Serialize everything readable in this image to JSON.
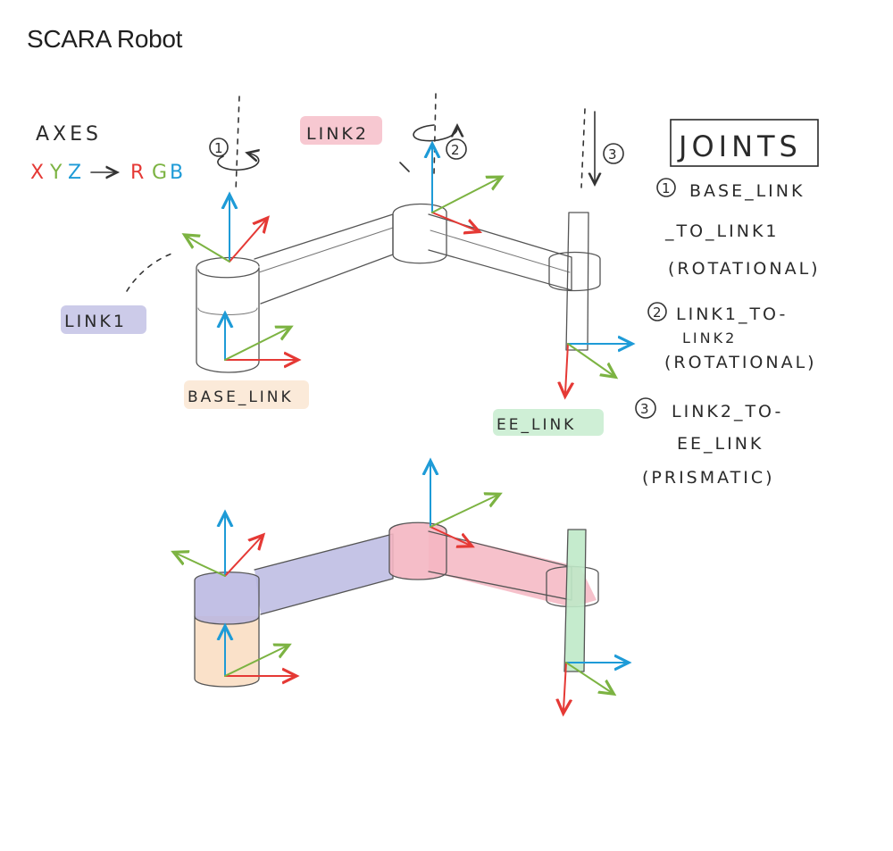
{
  "page": {
    "title": "SCARA Robot"
  },
  "axes_note": {
    "title": "AXES",
    "x": "X",
    "y": "Y",
    "z": "Z",
    "r": "R",
    "g": "G",
    "b": "B"
  },
  "labels": {
    "link1": "LINK1",
    "link2": "LINK2",
    "base_link": "BASE_LINK",
    "ee_link": "EE_LINK",
    "joint1_marker": "1",
    "joint2_marker": "2",
    "joint3_marker": "3"
  },
  "joints_box": {
    "title": "JOINTS",
    "items": [
      {
        "number": "1",
        "line1": "BASE_LINK",
        "line2": "_TO_LINK1",
        "type": "(ROTATIONAL)"
      },
      {
        "number": "2",
        "line1": "LINK1_TO-",
        "line2": "LINK2",
        "type": "(ROTATIONAL)"
      },
      {
        "number": "3",
        "line1": "LINK2_TO-",
        "line2": "EE_LINK",
        "type": "(PRISMATIC)"
      }
    ]
  },
  "colors": {
    "x_axis": "#e53935",
    "y_axis": "#7cb342",
    "z_axis": "#1e9bd7",
    "link1": "#b7b5e0",
    "link2": "#f4b6c2",
    "base_link": "#f9dcc0",
    "ee_link": "#bfe9c8"
  }
}
